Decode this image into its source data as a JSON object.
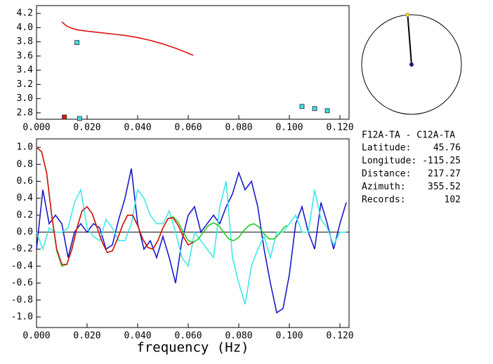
{
  "chart_data": [
    {
      "type": "line",
      "xlim": [
        0,
        0.1236
      ],
      "ylim": [
        2.71,
        4.31
      ],
      "xticks": [
        {
          "value": 0,
          "label": "0.000"
        },
        {
          "value": 0.02,
          "label": "0.020"
        },
        {
          "value": 0.04,
          "label": "0.040"
        },
        {
          "value": 0.06,
          "label": "0.060"
        },
        {
          "value": 0.08,
          "label": "0.080"
        },
        {
          "value": 0.1,
          "label": "0.100"
        },
        {
          "value": 0.12,
          "label": "0.120"
        }
      ],
      "yticks": [
        2.8,
        {
          "value": 3,
          "label": "3.0"
        },
        3.2,
        3.4,
        3.6,
        3.8,
        {
          "value": 4,
          "label": "4.0"
        },
        4.2
      ],
      "series": [
        {
          "mode": "line",
          "color": "#dd1111",
          "x": [
            0.01,
            0.012,
            0.014,
            0.016,
            0.02,
            0.025,
            0.03,
            0.035,
            0.04,
            0.045,
            0.05,
            0.055,
            0.06,
            0.062
          ],
          "values": [
            4.08,
            4.02,
            3.99,
            3.97,
            3.95,
            3.93,
            3.91,
            3.89,
            3.86,
            3.82,
            3.77,
            3.71,
            3.64,
            3.61
          ]
        },
        {
          "mode": "marker",
          "color": "#40e0e0",
          "x": [
            0.016,
            0.017,
            0.105,
            0.11,
            0.115
          ],
          "values": [
            3.79,
            2.72,
            2.89,
            2.86,
            2.83
          ]
        },
        {
          "mode": "marker",
          "color": "#ee1111",
          "x": [
            0.011
          ],
          "values": [
            2.74
          ]
        }
      ]
    },
    {
      "type": "line",
      "x_label": "frequency (Hz)",
      "zero_line": true,
      "xlim": [
        0,
        0.1236
      ],
      "ylim": [
        -1.124,
        1.1
      ],
      "xticks": [
        {
          "value": 0,
          "label": "0.000"
        },
        {
          "value": 0.02,
          "label": "0.020"
        },
        {
          "value": 0.04,
          "label": "0.040"
        },
        {
          "value": 0.06,
          "label": "0.060"
        },
        {
          "value": 0.08,
          "label": "0.080"
        },
        {
          "value": 0.1,
          "label": "0.100"
        },
        {
          "value": 0.12,
          "label": "0.120"
        }
      ],
      "yticks": [
        {
          "value": 1,
          "label": "1.0"
        },
        0.8,
        0.6,
        0.4,
        0.2,
        {
          "value": 0,
          "label": "0.0"
        },
        -0.2,
        -0.4,
        -0.6,
        -0.8,
        {
          "value": -1,
          "label": "-1.0"
        }
      ],
      "series": [
        {
          "mode": "line",
          "color": "#1a1acc",
          "x": [
            0,
            0.0025,
            0.005,
            0.0075,
            0.01,
            0.0125,
            0.015,
            0.0175,
            0.02,
            0.0225,
            0.025,
            0.0275,
            0.03,
            0.0325,
            0.035,
            0.0375,
            0.04,
            0.0425,
            0.045,
            0.0475,
            0.05,
            0.0525,
            0.055,
            0.0575,
            0.06,
            0.0625,
            0.065,
            0.0675,
            0.07,
            0.0725,
            0.075,
            0.0775,
            0.08,
            0.0825,
            0.085,
            0.0875,
            0.09,
            0.0925,
            0.095,
            0.0975,
            0.1,
            0.1025,
            0.105,
            0.1075,
            0.11,
            0.1125,
            0.115,
            0.1175,
            0.12,
            0.1225
          ],
          "values": [
            -0.2,
            0.5,
            0.1,
            0.2,
            0.1,
            -0.3,
            0.0,
            0.1,
            0.0,
            0.1,
            0.05,
            -0.2,
            -0.15,
            0.15,
            0.4,
            0.75,
            0.1,
            -0.2,
            -0.1,
            -0.3,
            -0.05,
            -0.3,
            -0.6,
            -0.1,
            0.2,
            0.3,
            0.0,
            0.1,
            0.2,
            0.1,
            0.3,
            0.45,
            0.7,
            0.5,
            0.6,
            0.3,
            -0.2,
            -0.6,
            -0.95,
            -0.9,
            -0.5,
            0.1,
            0.3,
            0.0,
            -0.2,
            0.35,
            0.1,
            -0.2,
            0.1,
            0.35
          ]
        },
        {
          "mode": "line",
          "color": "#40e8e8",
          "x": [
            0,
            0.0025,
            0.005,
            0.0075,
            0.01,
            0.0125,
            0.015,
            0.0175,
            0.02,
            0.0225,
            0.025,
            0.0275,
            0.03,
            0.0325,
            0.035,
            0.0375,
            0.04,
            0.0425,
            0.045,
            0.0475,
            0.05,
            0.0525,
            0.055,
            0.0575,
            0.06,
            0.0625,
            0.065,
            0.0675,
            0.07,
            0.0725,
            0.075,
            0.0775,
            0.08,
            0.0825,
            0.085,
            0.0875,
            0.09,
            0.0925,
            0.095,
            0.0975,
            0.1,
            0.1025,
            0.105,
            0.1075,
            0.11,
            0.1125,
            0.115,
            0.1175,
            0.12,
            0.1225
          ],
          "values": [
            0.0,
            -0.2,
            0.05,
            0.0,
            0.0,
            0.05,
            0.35,
            0.5,
            0.05,
            -0.05,
            -0.1,
            0.15,
            0.05,
            -0.1,
            -0.1,
            0.1,
            0.5,
            0.4,
            0.2,
            0.1,
            0.1,
            0.25,
            0.0,
            -0.3,
            -0.4,
            0.0,
            -0.1,
            -0.2,
            -0.3,
            0.3,
            0.6,
            -0.3,
            -0.6,
            -0.85,
            -0.4,
            -0.2,
            -0.05,
            -0.3,
            0.0,
            0.0,
            0.1,
            0.2,
            0.0,
            0.0,
            0.5,
            0.15,
            0.05,
            -0.15,
            0.0,
            0.0
          ]
        },
        {
          "mode": "line",
          "color": "#22cc22",
          "x": [
            0,
            0.002,
            0.004,
            0.006,
            0.008,
            0.01,
            0.012,
            0.014,
            0.016,
            0.018,
            0.02,
            0.022,
            0.024,
            0.026,
            0.028,
            0.03,
            0.032,
            0.034,
            0.036,
            0.038,
            0.04,
            0.042,
            0.044,
            0.046,
            0.048,
            0.05,
            0.052,
            0.054,
            0.056,
            0.058,
            0.06,
            0.062,
            0.064,
            0.066,
            0.068,
            0.07,
            0.072,
            0.074,
            0.076,
            0.078,
            0.08,
            0.082,
            0.084,
            0.086,
            0.088,
            0.09,
            0.092,
            0.094,
            0.096,
            0.098,
            0.099
          ],
          "values": [
            1.0,
            0.95,
            0.7,
            0.2,
            -0.22,
            -0.4,
            -0.38,
            -0.2,
            0.05,
            0.25,
            0.3,
            0.22,
            0.05,
            -0.12,
            -0.24,
            -0.22,
            -0.08,
            0.08,
            0.2,
            0.2,
            0.08,
            -0.08,
            -0.18,
            -0.2,
            -0.1,
            0.05,
            0.16,
            0.18,
            0.12,
            0.0,
            -0.1,
            -0.12,
            -0.08,
            0.0,
            0.08,
            0.11,
            0.08,
            0.0,
            -0.08,
            -0.1,
            -0.06,
            0.02,
            0.08,
            0.1,
            0.06,
            -0.02,
            -0.08,
            -0.08,
            -0.02,
            0.06,
            0.08
          ]
        },
        {
          "mode": "line",
          "color": "#dd1111",
          "x": [
            0,
            0.002,
            0.004,
            0.006,
            0.008,
            0.01,
            0.012,
            0.014,
            0.016,
            0.018,
            0.02,
            0.022,
            0.024,
            0.026,
            0.028,
            0.03,
            0.032,
            0.034,
            0.036,
            0.038,
            0.04,
            0.042,
            0.044,
            0.046,
            0.048,
            0.05,
            0.052,
            0.054,
            0.056,
            0.058,
            0.06,
            0.062
          ],
          "values": [
            1.0,
            0.95,
            0.7,
            0.2,
            -0.2,
            -0.38,
            -0.38,
            -0.2,
            0.05,
            0.25,
            0.3,
            0.22,
            0.05,
            -0.12,
            -0.24,
            -0.22,
            -0.08,
            0.08,
            0.2,
            0.2,
            0.08,
            -0.08,
            -0.18,
            -0.2,
            -0.1,
            0.05,
            0.16,
            0.17,
            0.08,
            -0.05,
            -0.15,
            -0.12
          ]
        }
      ]
    }
  ],
  "info": {
    "station": "F12A-TA - C12A-TA",
    "rows": [
      {
        "label": "Latitude:",
        "value": 45.76
      },
      {
        "label": "Longitude:",
        "value": -115.25
      },
      {
        "label": "Distance:",
        "value": 217.27
      },
      {
        "label": "Azimuth:",
        "value": 355.52
      },
      {
        "label": "Records:",
        "value": 102
      }
    ]
  }
}
